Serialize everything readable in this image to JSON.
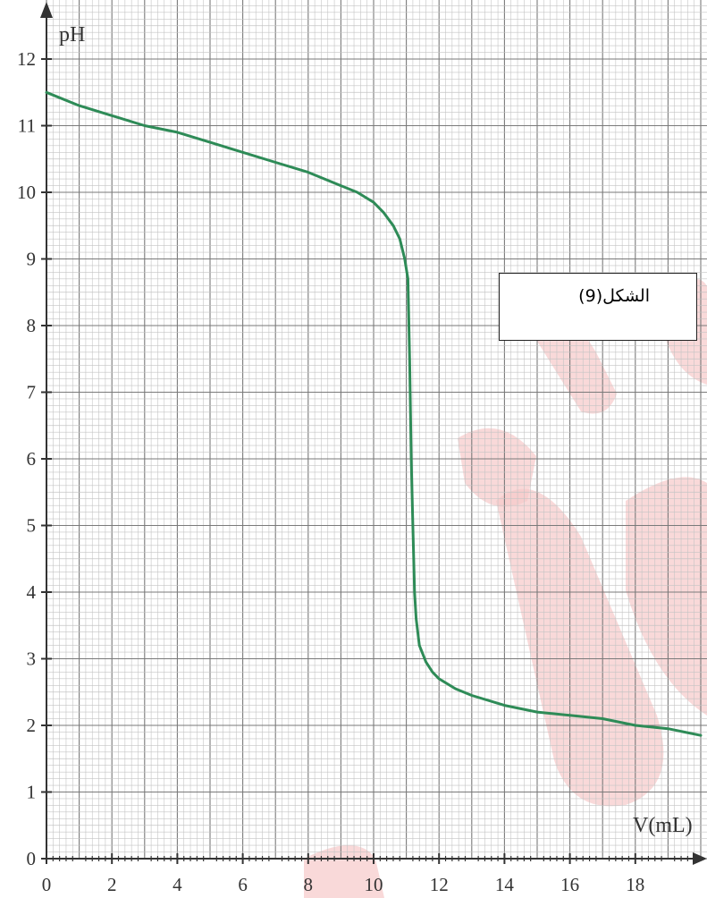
{
  "caption": "الشكل(9)",
  "colors": {
    "curve": "#2e8b57",
    "grid_major": "#7a7a7a",
    "grid_minor": "#c4c4c4",
    "axis": "#333333",
    "watermark": "#f6c9c9"
  },
  "chart_data": {
    "type": "line",
    "xlabel": "V(mL)",
    "ylabel": "pH",
    "xlim": [
      0,
      20
    ],
    "ylim": [
      0,
      13
    ],
    "x_ticks": [
      "0",
      "2",
      "4",
      "6",
      "8",
      "10",
      "12",
      "14",
      "16",
      "18"
    ],
    "y_ticks": [
      "0",
      "1",
      "2",
      "3",
      "4",
      "5",
      "6",
      "7",
      "8",
      "9",
      "10",
      "11",
      "12"
    ],
    "grid": true,
    "series": [
      {
        "x": [
          0,
          1,
          2,
          3,
          4,
          5,
          6,
          7,
          8,
          9,
          9.5,
          10,
          10.3,
          10.6,
          10.8,
          10.95,
          11.05,
          11.1,
          11.15,
          11.2,
          11.25,
          11.3,
          11.4,
          11.6,
          11.8,
          12.0,
          12.5,
          13,
          14,
          15,
          16,
          17,
          18,
          19,
          20
        ],
        "y": [
          11.5,
          11.3,
          11.15,
          11.0,
          10.9,
          10.75,
          10.6,
          10.45,
          10.3,
          10.1,
          10.0,
          9.85,
          9.7,
          9.5,
          9.3,
          9.0,
          8.7,
          7.5,
          6.0,
          5.0,
          4.0,
          3.6,
          3.2,
          2.95,
          2.8,
          2.7,
          2.55,
          2.45,
          2.3,
          2.2,
          2.15,
          2.1,
          2.0,
          1.95,
          1.85
        ]
      }
    ]
  }
}
